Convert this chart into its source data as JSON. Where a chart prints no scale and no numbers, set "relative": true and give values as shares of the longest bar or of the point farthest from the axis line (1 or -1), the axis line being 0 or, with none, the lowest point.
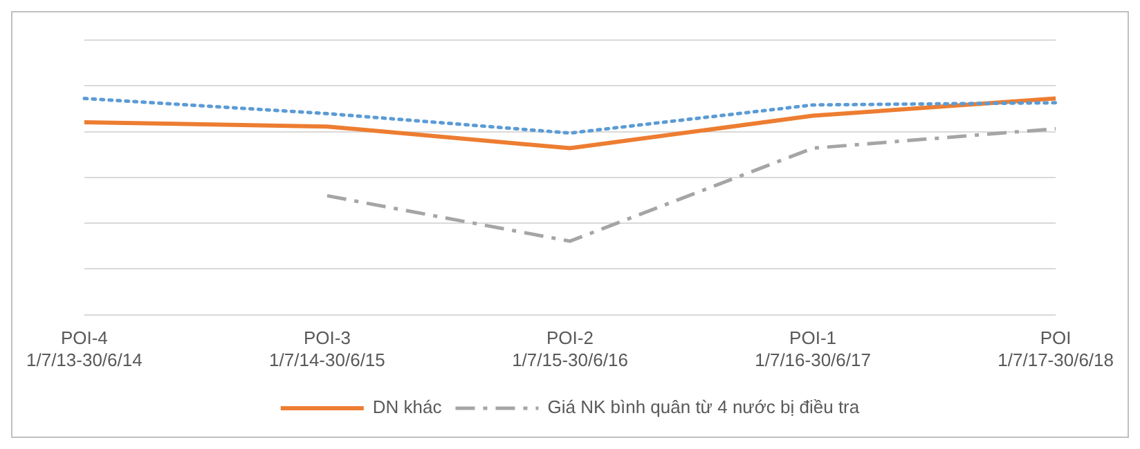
{
  "chart_data": {
    "type": "line",
    "relative": true,
    "grid": "y",
    "legend": "bottom",
    "marker": "none",
    "categories": [
      "POI-4\n1/7/13-30/6/14",
      "POI-3\n1/7/14-30/6/15",
      "POI-2\n1/7/15-30/6/16",
      "POI-1\n1/7/16-30/6/17",
      "POI\n1/7/17-30/6/18"
    ],
    "series": [
      {
        "color": "#5b9bd5",
        "line_style": "dotted",
        "values": [
          1,
          0.93,
          0.84,
          0.97,
          0.98
        ]
      },
      {
        "name": "DN khác",
        "color": "#ed7d31",
        "line_style": "solid",
        "values": [
          0.89,
          0.87,
          0.77,
          0.92,
          1
        ]
      },
      {
        "name": "Giá NK bình quân từ 4 nước bị điều tra",
        "color": "#a5a5a5",
        "line_style": "dashed",
        "values": [
          null,
          0.55,
          0.34,
          0.77,
          0.86
        ]
      }
    ]
  }
}
